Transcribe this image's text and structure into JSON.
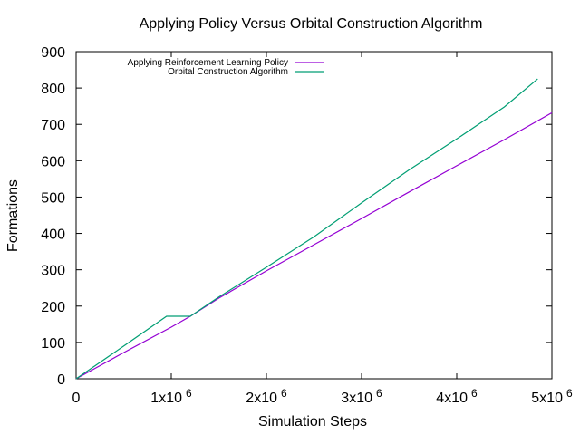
{
  "chart_data": {
    "type": "line",
    "title": "Applying Policy Versus Orbital Construction Algorithm",
    "xlabel": "Simulation Steps",
    "ylabel": "Formations",
    "xlim": [
      0,
      5000000
    ],
    "ylim": [
      0,
      900
    ],
    "x_ticks": [
      {
        "value": 0,
        "label": "0"
      },
      {
        "value": 1000000,
        "label": "1x10",
        "exp": "6"
      },
      {
        "value": 2000000,
        "label": "2x10",
        "exp": "6"
      },
      {
        "value": 3000000,
        "label": "3x10",
        "exp": "6"
      },
      {
        "value": 4000000,
        "label": "4x10",
        "exp": "6"
      },
      {
        "value": 5000000,
        "label": "5x10",
        "exp": "6"
      }
    ],
    "y_ticks": [
      {
        "value": 0,
        "label": "0"
      },
      {
        "value": 100,
        "label": "100"
      },
      {
        "value": 200,
        "label": "200"
      },
      {
        "value": 300,
        "label": "300"
      },
      {
        "value": 400,
        "label": "400"
      },
      {
        "value": 500,
        "label": "500"
      },
      {
        "value": 600,
        "label": "600"
      },
      {
        "value": 700,
        "label": "700"
      },
      {
        "value": 800,
        "label": "800"
      },
      {
        "value": 900,
        "label": "900"
      }
    ],
    "grid": false,
    "legend_position": "top-left",
    "series": [
      {
        "name": "Applying Reinforcement Learning Policy",
        "color": "#9400d3",
        "points": [
          [
            0,
            0
          ],
          [
            500000,
            72
          ],
          [
            1000000,
            142
          ],
          [
            1200000,
            172
          ],
          [
            1500000,
            222
          ],
          [
            2000000,
            297
          ],
          [
            2500000,
            369
          ],
          [
            3000000,
            441
          ],
          [
            3500000,
            514
          ],
          [
            4000000,
            586
          ],
          [
            4500000,
            658
          ],
          [
            5000000,
            732
          ]
        ]
      },
      {
        "name": "Orbital Construction Algorithm",
        "color": "#009e73",
        "points": [
          [
            0,
            0
          ],
          [
            500000,
            90
          ],
          [
            950000,
            172
          ],
          [
            1200000,
            172
          ],
          [
            1500000,
            225
          ],
          [
            2000000,
            307
          ],
          [
            2500000,
            391
          ],
          [
            3000000,
            484
          ],
          [
            3500000,
            575
          ],
          [
            4000000,
            660
          ],
          [
            4500000,
            748
          ],
          [
            4850000,
            825
          ]
        ]
      }
    ]
  }
}
